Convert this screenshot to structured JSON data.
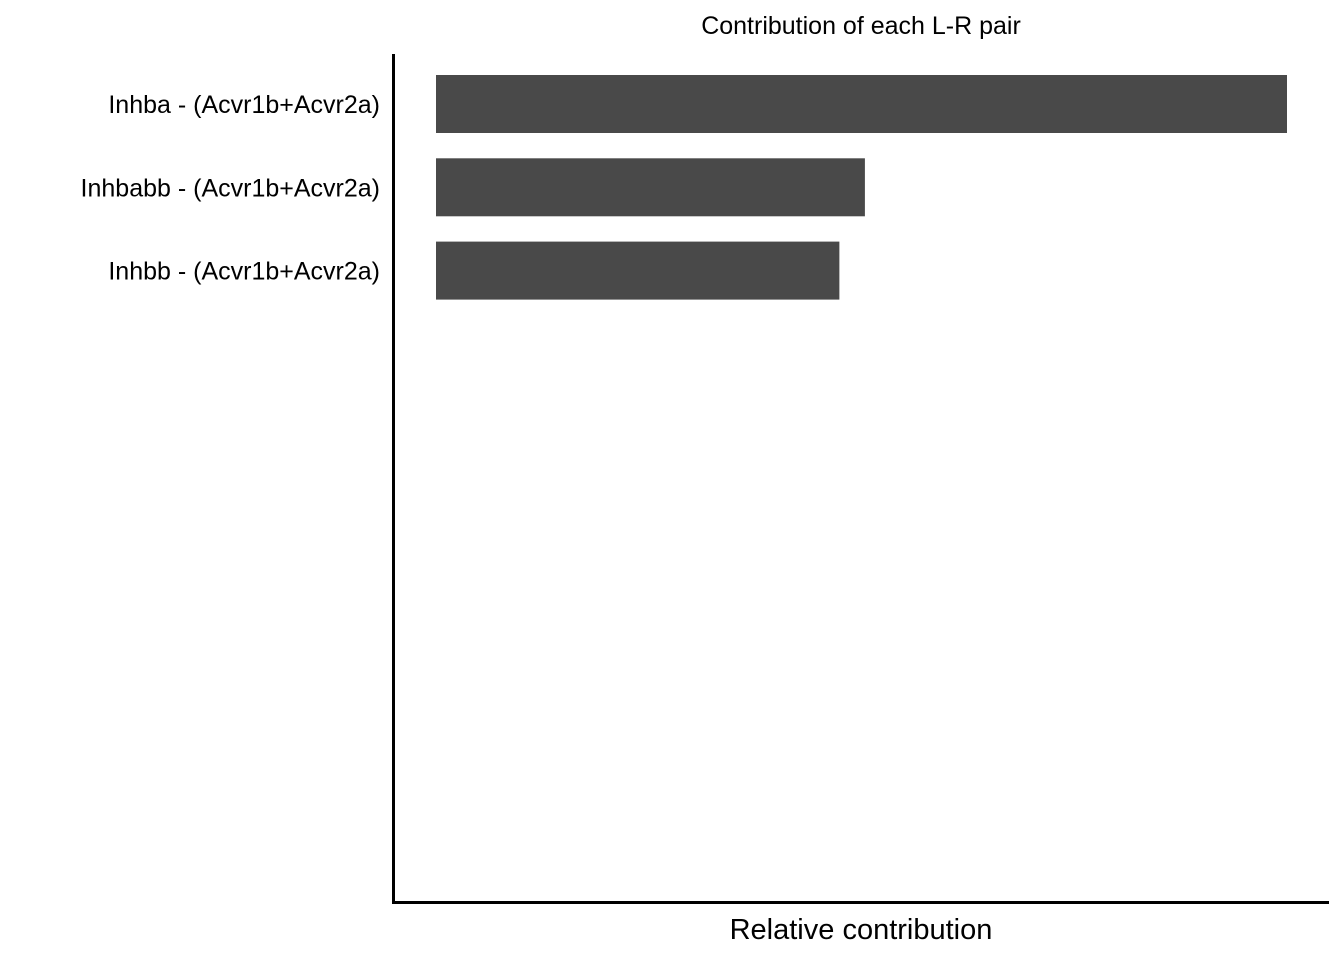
{
  "chart_data": {
    "type": "bar",
    "orientation": "horizontal",
    "title": "Contribution of each L-R pair",
    "xlabel": "Relative contribution",
    "ylabel": "",
    "categories": [
      "Inhba  - (Acvr1b+Acvr2a)",
      "Inhbabb  - (Acvr1b+Acvr2a)",
      "Inhbb  - (Acvr1b+Acvr2a)"
    ],
    "values": [
      1.0,
      0.504,
      0.474
    ],
    "xlim": [
      0,
      1.0
    ],
    "x_ticks_shown": false,
    "grid": false,
    "legend": "none",
    "bar_color": "#494949",
    "axis_color": "#000000"
  }
}
